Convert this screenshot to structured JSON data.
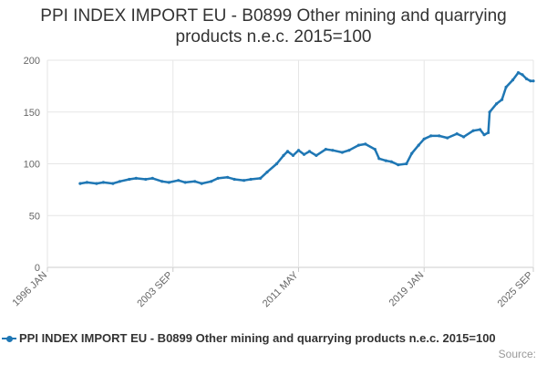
{
  "title_line1": "PPI INDEX IMPORT EU - B0899 Other mining and quarrying",
  "title_line2": "products n.e.c. 2015=100",
  "legend_label": "PPI INDEX IMPORT EU - B0899 Other mining and quarrying products n.e.c. 2015=100",
  "source_label": "Source:",
  "colors": {
    "series": "#1f77b4",
    "grid": "#e6e6e6",
    "axis_text": "#666666"
  },
  "chart_data": {
    "type": "line",
    "title": "PPI INDEX IMPORT EU - B0899 Other mining and quarrying products n.e.c. 2015=100",
    "xlabel": "",
    "ylabel": "",
    "ylim": [
      0,
      200
    ],
    "y_ticks": [
      0,
      50,
      100,
      150,
      200
    ],
    "x_range": [
      "1996-01",
      "2025-09"
    ],
    "x_ticks": [
      "1996 JAN",
      "2003 SEP",
      "2011 MAY",
      "2019 JAN",
      "2025 SEP"
    ],
    "grid": true,
    "legend": "bottom",
    "series": [
      {
        "name": "PPI INDEX IMPORT EU - B0899 Other mining and quarrying products n.e.c. 2015=100",
        "points": [
          [
            "1998-01",
            81
          ],
          [
            "1998-06",
            82
          ],
          [
            "1999-01",
            81
          ],
          [
            "1999-06",
            82
          ],
          [
            "2000-01",
            81
          ],
          [
            "2000-06",
            83
          ],
          [
            "2001-01",
            85
          ],
          [
            "2001-06",
            86
          ],
          [
            "2002-01",
            85
          ],
          [
            "2002-06",
            86
          ],
          [
            "2003-01",
            83
          ],
          [
            "2003-06",
            82
          ],
          [
            "2004-01",
            84
          ],
          [
            "2004-06",
            82
          ],
          [
            "2005-01",
            83
          ],
          [
            "2005-06",
            81
          ],
          [
            "2006-01",
            83
          ],
          [
            "2006-06",
            86
          ],
          [
            "2007-01",
            87
          ],
          [
            "2007-06",
            85
          ],
          [
            "2008-01",
            84
          ],
          [
            "2008-06",
            85
          ],
          [
            "2009-01",
            86
          ],
          [
            "2009-06",
            92
          ],
          [
            "2010-01",
            100
          ],
          [
            "2010-06",
            108
          ],
          [
            "2010-09",
            112
          ],
          [
            "2011-01",
            108
          ],
          [
            "2011-05",
            113
          ],
          [
            "2011-09",
            109
          ],
          [
            "2012-01",
            112
          ],
          [
            "2012-06",
            108
          ],
          [
            "2013-01",
            114
          ],
          [
            "2013-06",
            113
          ],
          [
            "2014-01",
            111
          ],
          [
            "2014-06",
            113
          ],
          [
            "2015-01",
            118
          ],
          [
            "2015-06",
            119
          ],
          [
            "2016-01",
            114
          ],
          [
            "2016-04",
            105
          ],
          [
            "2016-09",
            103
          ],
          [
            "2017-01",
            102
          ],
          [
            "2017-06",
            99
          ],
          [
            "2017-12",
            100
          ],
          [
            "2018-04",
            110
          ],
          [
            "2018-09",
            118
          ],
          [
            "2019-01",
            124
          ],
          [
            "2019-06",
            127
          ],
          [
            "2019-12",
            127
          ],
          [
            "2020-06",
            125
          ],
          [
            "2021-01",
            129
          ],
          [
            "2021-06",
            126
          ],
          [
            "2022-01",
            132
          ],
          [
            "2022-06",
            133
          ],
          [
            "2022-09",
            128
          ],
          [
            "2022-12",
            130
          ],
          [
            "2023-01",
            150
          ],
          [
            "2023-06",
            158
          ],
          [
            "2023-10",
            162
          ],
          [
            "2024-01",
            174
          ],
          [
            "2024-06",
            181
          ],
          [
            "2024-10",
            188
          ],
          [
            "2025-01",
            186
          ],
          [
            "2025-04",
            182
          ],
          [
            "2025-07",
            180
          ],
          [
            "2025-09",
            180
          ]
        ]
      }
    ]
  }
}
